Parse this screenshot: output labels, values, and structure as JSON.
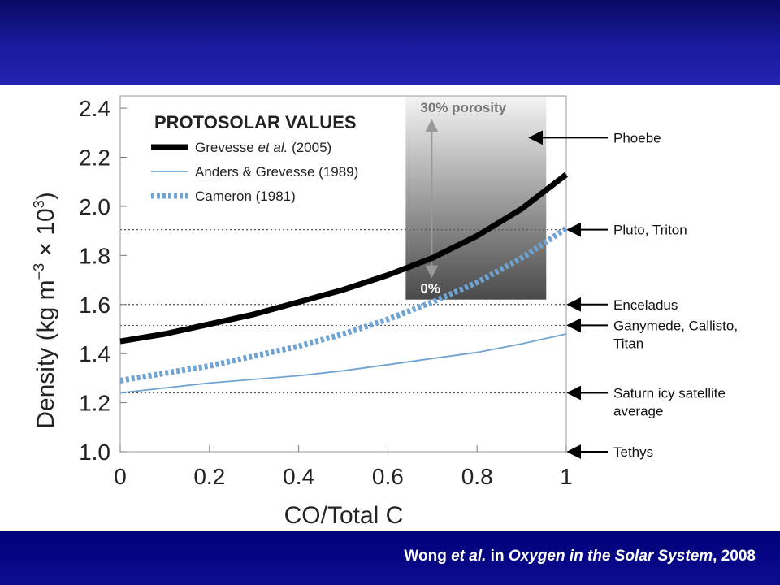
{
  "citation": {
    "author": "Wong",
    "etal": "et al.",
    "in_word": " in ",
    "book": "Oxygen in the Solar System",
    "year": ", 2008"
  },
  "chart_data": {
    "type": "line",
    "xlabel": "CO/Total C",
    "ylabel_parts": [
      "Density (kg m",
      "−3",
      " × 10",
      "3",
      ")"
    ],
    "xlim": [
      0,
      1
    ],
    "ylim": [
      1.0,
      2.45
    ],
    "xticks": [
      "0",
      "0.2",
      "0.4",
      "0.6",
      "0.8",
      "1"
    ],
    "xtick_values": [
      0,
      0.2,
      0.4,
      0.6,
      0.8,
      1
    ],
    "yticks": [
      "1.0",
      "1.2",
      "1.4",
      "1.6",
      "1.8",
      "2.0",
      "2.2",
      "2.4"
    ],
    "ytick_values": [
      1.0,
      1.2,
      1.4,
      1.6,
      1.8,
      2.0,
      2.2,
      2.4
    ],
    "legend_title": "PROTOSOLAR VALUES",
    "legend_position": "top-left",
    "series": [
      {
        "name": "Grevesse et al. (2005)",
        "name_parts": [
          "Grevesse ",
          "et al.",
          " (2005)"
        ],
        "style": "thick-solid",
        "color": "#000000",
        "x": [
          0,
          0.1,
          0.2,
          0.3,
          0.4,
          0.5,
          0.6,
          0.7,
          0.8,
          0.9,
          1.0
        ],
        "y": [
          1.45,
          1.48,
          1.52,
          1.56,
          1.61,
          1.66,
          1.72,
          1.79,
          1.88,
          1.99,
          2.13
        ]
      },
      {
        "name": "Anders & Grevesse (1989)",
        "name_parts": [
          "Anders & Grevesse (1989)"
        ],
        "style": "thin-solid",
        "color": "#6fa3d1",
        "x": [
          0,
          0.1,
          0.2,
          0.3,
          0.4,
          0.5,
          0.6,
          0.7,
          0.8,
          0.9,
          1.0
        ],
        "y": [
          1.24,
          1.26,
          1.28,
          1.295,
          1.31,
          1.33,
          1.355,
          1.38,
          1.405,
          1.44,
          1.48
        ]
      },
      {
        "name": "Cameron (1981)",
        "name_parts": [
          "Cameron (1981)"
        ],
        "style": "thick-dotted",
        "color": "#6fa3d1",
        "x": [
          0,
          0.1,
          0.2,
          0.3,
          0.4,
          0.5,
          0.6,
          0.7,
          0.8,
          0.9,
          1.0
        ],
        "y": [
          1.29,
          1.32,
          1.35,
          1.39,
          1.43,
          1.48,
          1.54,
          1.61,
          1.69,
          1.79,
          1.91
        ]
      }
    ],
    "porosity_box": {
      "x_range": [
        0.64,
        0.955
      ],
      "y_range": [
        1.62,
        2.48
      ],
      "top_label": "30% porosity",
      "bottom_label": "0%"
    },
    "reference_lines": [
      {
        "label": "Phoebe",
        "y": 2.28,
        "dotted": false
      },
      {
        "label": "Pluto, Triton",
        "y": 1.905,
        "dotted": true
      },
      {
        "label": "Enceladus",
        "y": 1.6,
        "dotted": true
      },
      {
        "label": "Ganymede, Callisto,",
        "label2": "Titan",
        "y": 1.515,
        "dotted": true
      },
      {
        "label": "Saturn icy satellite",
        "label2": "average",
        "y": 1.24,
        "dotted": true
      },
      {
        "label": "Tethys",
        "y": 1.0,
        "dotted": false
      }
    ]
  }
}
